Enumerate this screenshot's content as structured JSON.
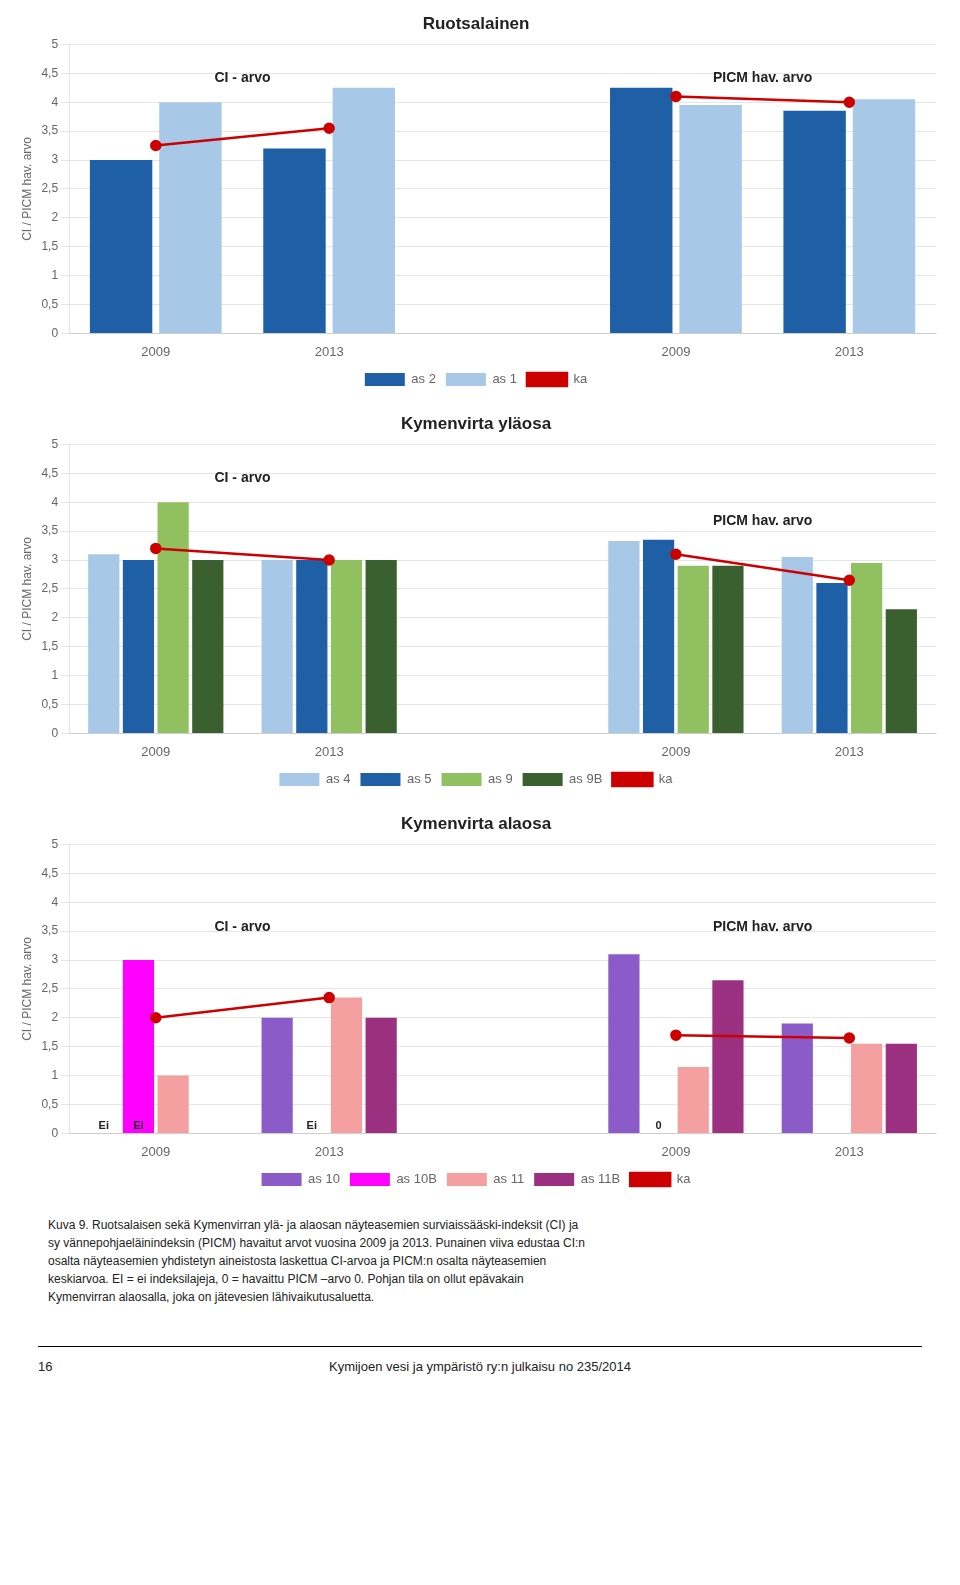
{
  "chart_data": [
    {
      "type": "bar",
      "title": "Ruotsalainen",
      "ylabel": "CI / PICM hav. arvo",
      "categories": [
        "2009",
        "2013",
        null,
        "2009",
        "2013"
      ],
      "series": [
        {
          "name": "as 2",
          "type": "bar",
          "color": "#1F5FA6",
          "values": [
            3.0,
            3.2,
            null,
            4.25,
            3.85
          ]
        },
        {
          "name": "as 1",
          "type": "bar",
          "color": "#A8C8E8",
          "values": [
            4.0,
            4.25,
            null,
            3.95,
            4.05
          ]
        },
        {
          "name": "ka",
          "type": "line",
          "color": "#CC0000",
          "marker": "circle",
          "values": [
            3.25,
            3.55,
            null,
            4.1,
            4.0
          ]
        }
      ],
      "ylim": [
        0,
        5
      ],
      "yticks": [
        0,
        {
          "value": 0.5,
          "label": "0,5"
        },
        1,
        {
          "value": 1.5,
          "label": "1,5"
        },
        2,
        {
          "value": 2.5,
          "label": "2,5"
        },
        3,
        {
          "value": 3.5,
          "label": "3,5"
        },
        4,
        {
          "value": 4.5,
          "label": "4,5"
        },
        5
      ],
      "grid": "y",
      "legend": "bottom",
      "annotations": [
        {
          "text": "CI - arvo",
          "y": 4.3
        },
        {
          "text": "PICM hav. arvo",
          "y": 4.3
        }
      ]
    },
    {
      "type": "bar",
      "title": "Kymenvirta yläosa",
      "ylabel": "CI / PICM hav. arvo",
      "categories": [
        "2009",
        "2013",
        null,
        "2009",
        "2013"
      ],
      "series": [
        {
          "name": "as 4",
          "type": "bar",
          "color": "#A8C8E8",
          "values": [
            3.1,
            3.0,
            null,
            3.33,
            3.05
          ]
        },
        {
          "name": "as 5",
          "type": "bar",
          "color": "#1F5FA6",
          "values": [
            3.0,
            3.0,
            null,
            3.35,
            2.6
          ]
        },
        {
          "name": "as 9",
          "type": "bar",
          "color": "#90C060",
          "values": [
            4.0,
            3.0,
            null,
            2.9,
            2.95
          ]
        },
        {
          "name": "as 9B",
          "type": "bar",
          "color": "#3A6030",
          "values": [
            3.0,
            3.0,
            null,
            2.9,
            2.15
          ]
        },
        {
          "name": "ka",
          "type": "line",
          "color": "#CC0000",
          "marker": "circle",
          "values": [
            3.2,
            3.0,
            null,
            3.1,
            2.65
          ]
        }
      ],
      "ylim": [
        0,
        5
      ],
      "yticks": [
        0,
        {
          "value": 0.5,
          "label": "0,5"
        },
        1,
        {
          "value": 1.5,
          "label": "1,5"
        },
        2,
        {
          "value": 2.5,
          "label": "2,5"
        },
        3,
        {
          "value": 3.5,
          "label": "3,5"
        },
        4,
        {
          "value": 4.5,
          "label": "4,5"
        },
        5
      ],
      "grid": "y",
      "legend": "bottom",
      "annotations": [
        {
          "text": "CI - arvo",
          "y": 4.3
        },
        {
          "text": "PICM hav. arvo",
          "y": 3.55
        }
      ]
    },
    {
      "type": "bar",
      "title": "Kymenvirta alaosa",
      "ylabel": "CI / PICM hav. arvo",
      "categories": [
        "2009",
        "2013",
        null,
        "2009",
        "2013"
      ],
      "series": [
        {
          "name": "as 10",
          "type": "bar",
          "color": "#8B5CC8",
          "values": [
            0.0,
            2.0,
            null,
            3.1,
            1.9
          ]
        },
        {
          "name": "as 10B",
          "type": "bar",
          "color": "#FF00FF",
          "values": [
            3.0,
            0.0,
            null,
            0.0,
            0.0
          ]
        },
        {
          "name": "as 11",
          "type": "bar",
          "color": "#F4A0A0",
          "values": [
            1.0,
            2.35,
            null,
            1.15,
            1.55
          ]
        },
        {
          "name": "as 11B",
          "type": "bar",
          "color": "#9B3080",
          "values": [
            0.0,
            2.0,
            null,
            2.65,
            1.55
          ]
        },
        {
          "name": "ka",
          "type": "line",
          "color": "#CC0000",
          "marker": "circle",
          "values": [
            2.0,
            2.35,
            null,
            1.7,
            1.65
          ]
        }
      ],
      "ylim": [
        0,
        5
      ],
      "yticks": [
        0,
        {
          "value": 0.5,
          "label": "0,5"
        },
        1,
        {
          "value": 1.5,
          "label": "1,5"
        },
        2,
        {
          "value": 2.5,
          "label": "2,5"
        },
        3,
        {
          "value": 3.5,
          "label": "3,5"
        },
        4,
        {
          "value": 4.5,
          "label": "4,5"
        },
        5
      ],
      "grid": "y",
      "legend": "bottom",
      "annotations": [
        {
          "text": "CI - arvo",
          "y": 3.45
        },
        {
          "text": "PICM hav. arvo",
          "y": 3.45
        }
      ],
      "bar_notes": [
        {
          "text": "Ei",
          "series": "as 10",
          "index": 0
        },
        {
          "text": "Ei",
          "series": "as 10B",
          "index": 0
        },
        {
          "text": "Ei",
          "series": "as 10B",
          "index": 1
        },
        {
          "text": "0",
          "series": "as 10B",
          "index": 3
        }
      ]
    }
  ],
  "caption": "Kuva 9. Ruotsalaisen sekä Kymenvirran ylä- ja alaosan näyteasemien surviaissääski-indeksit (CI) ja\nsy vännepohjaeläinindeksin (PICM) havaitut arvot vuosina 2009 ja 2013. Punainen viiva edustaa CI:n\nosalta näyteasemien yhdistetyn aineistosta laskettua CI-arvoa ja PICM:n osalta näyteasemien\nkeskiarvoa. EI = ei indeksilajeja, 0 = havaittu PICM –arvo 0. Pohjan tila on ollut epävakain\nKymenvirran alaosalla, joka on jätevesien lähivaikutusaluetta.",
  "footer": {
    "page": "16",
    "publication": "Kymijoen vesi ja ympäristö ry:n julkaisu no 235/2014"
  }
}
